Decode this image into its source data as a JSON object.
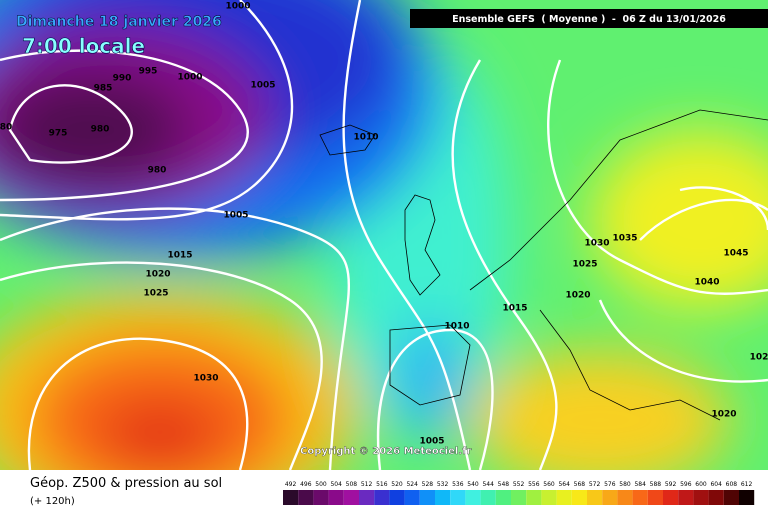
{
  "map": {
    "title": "Dimanche 18 janvier 2026",
    "time": "7:00 locale",
    "header": "Ensemble GEFS  ( Moyenne )  -  06 Z du 13/01/2026",
    "copyright": "Copyright © 2026 Meteociel.fr",
    "footer": {
      "title": "Géop. Z500 & pression au sol",
      "subtitle": "(+ 120h)"
    },
    "isobar_labels": [
      "1000",
      "990",
      "995",
      "1000",
      "985",
      "975",
      "980",
      "980",
      "80",
      "1005",
      "1010",
      "1005",
      "1015",
      "1020",
      "1025",
      "1030",
      "1030",
      "1035",
      "1025",
      "1020",
      "1015",
      "1010",
      "1005",
      "1045",
      "1040",
      "1020",
      "102"
    ],
    "scale": {
      "labels": [
        "492",
        "496",
        "500",
        "504",
        "508",
        "512",
        "516",
        "520",
        "524",
        "528",
        "532",
        "536",
        "540",
        "544",
        "548",
        "552",
        "556",
        "560",
        "564",
        "568",
        "572",
        "576",
        "580",
        "584",
        "588",
        "592",
        "596",
        "600",
        "604",
        "608",
        "612"
      ],
      "colors": [
        "#2a0a2a",
        "#4a0a4a",
        "#6a0a6a",
        "#8a0a8a",
        "#a010a0",
        "#6a2ac0",
        "#3a30d0",
        "#1040e0",
        "#1060f0",
        "#1090f8",
        "#10b8f8",
        "#30d8f8",
        "#40f0e0",
        "#40f0b0",
        "#50f080",
        "#70f060",
        "#a0f040",
        "#c8f030",
        "#e8f020",
        "#f8e818",
        "#f8c818",
        "#f8a818",
        "#f88818",
        "#f86818",
        "#f04818",
        "#e02818",
        "#c01818",
        "#a01010",
        "#800808",
        "#500404",
        "#100000"
      ]
    }
  }
}
